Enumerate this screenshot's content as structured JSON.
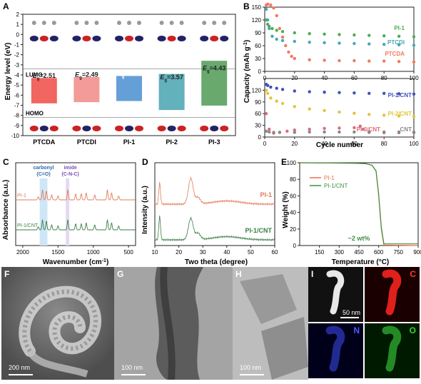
{
  "panels": {
    "A": "A",
    "B": "B",
    "C": "C",
    "D": "D",
    "E": "E",
    "F": "F",
    "G": "G",
    "H": "H",
    "I": "I"
  },
  "colors": {
    "pi1": "#4caf50",
    "ptcdi": "#4aa6b4",
    "ptcda": "#ef7a5e",
    "pi1cnt": "#4150c0",
    "pi2cnt": "#e2c43c",
    "pi3cnt": "#e06a78",
    "cnt": "#888888",
    "c_pi1": "#e57a5a",
    "c_pi1cnt": "#3a7d44",
    "carbonyl_band": "#cfe6f6",
    "imide_band": "#e5d8f3",
    "e_pi1": "#f26b4b",
    "e_pi1cnt": "#3f8f3f"
  },
  "chart_data": [
    {
      "panel": "A",
      "type": "bar",
      "ylabel": "Energy level (eV)",
      "ylim": [
        -10,
        2
      ],
      "yticks": [
        2,
        1,
        0,
        -1,
        -2,
        -3,
        -4,
        -5,
        -6,
        -7,
        -8,
        -9,
        -10
      ],
      "categories": [
        "PTCDA",
        "PTCDI",
        "PI-1",
        "PI-2",
        "PI-3"
      ],
      "lumo": [
        -4.3,
        -4.2,
        -4.1,
        -3.9,
        -2.6
      ],
      "homo": [
        -6.81,
        -6.69,
        -6.58,
        -7.47,
        -7.03
      ],
      "gap_labels": [
        "2.51",
        "2.49",
        "2.48",
        "3.57",
        "4.43"
      ],
      "gap_prefix": "E",
      "gap_sub": "g",
      "lumo_label": "LUMO",
      "homo_label": "HOMO",
      "bar_colors": [
        "#ef4b44",
        "#f08a86",
        "#4a8ed1",
        "#46a3b1",
        "#4f9a55"
      ]
    },
    {
      "panel": "B-top",
      "type": "scatter",
      "ylabel": "Capacity (mAh g",
      "ylabel_sup": "-1",
      "ylabel_end": ")",
      "xlim": [
        0,
        100
      ],
      "ylim": [
        0,
        150
      ],
      "yticks": [
        0,
        30,
        60,
        90,
        120,
        150
      ],
      "xticks": [
        0,
        20,
        40,
        60,
        80,
        100
      ],
      "series": [
        {
          "name": "PI-1",
          "x": [
            1,
            2,
            3,
            5,
            8,
            12,
            20,
            30,
            40,
            50,
            60,
            70,
            80,
            90,
            100
          ],
          "y": [
            120,
            110,
            105,
            100,
            96,
            93,
            90,
            88,
            87,
            86,
            85,
            84,
            83,
            82,
            81
          ]
        },
        {
          "name": "PTCDI",
          "x": [
            1,
            2,
            3,
            5,
            8,
            12,
            20,
            30,
            40,
            50,
            60,
            70,
            80,
            90,
            100
          ],
          "y": [
            145,
            120,
            100,
            82,
            75,
            72,
            70,
            68,
            67,
            66,
            65,
            64,
            63,
            62,
            61
          ]
        },
        {
          "name": "PTCDA",
          "x": [
            1,
            2,
            4,
            6,
            8,
            10,
            12,
            14,
            16,
            18,
            20,
            30,
            40,
            50,
            60,
            70,
            80,
            90,
            100
          ],
          "y": [
            155,
            157,
            155,
            148,
            130,
            100,
            80,
            60,
            45,
            35,
            30,
            27,
            26,
            25,
            25,
            24,
            24,
            23,
            22
          ]
        }
      ]
    },
    {
      "panel": "B-bottom",
      "type": "scatter",
      "xlabel": "Cycle number",
      "xlim": [
        0,
        100
      ],
      "ylim": [
        0,
        150
      ],
      "yticks": [
        0,
        30,
        60,
        90,
        120
      ],
      "xticks": [
        0,
        20,
        40,
        60,
        80,
        100
      ],
      "series": [
        {
          "name": "PI-1/CNT",
          "x": [
            1,
            2,
            4,
            8,
            12,
            20,
            30,
            40,
            50,
            60,
            70,
            80,
            90,
            100
          ],
          "y": [
            135,
            132,
            128,
            125,
            122,
            118,
            116,
            115,
            114,
            113,
            112,
            112,
            111,
            110
          ]
        },
        {
          "name": "PI-2/CNT",
          "x": [
            1,
            2,
            4,
            8,
            12,
            20,
            30,
            40,
            50,
            60,
            70,
            80,
            90,
            100
          ],
          "y": [
            120,
            112,
            100,
            92,
            86,
            78,
            72,
            68,
            64,
            61,
            58,
            56,
            54,
            53
          ]
        },
        {
          "name": "PI-3/CNT",
          "x": [
            1,
            3,
            6,
            10,
            15,
            20,
            30,
            40,
            50,
            60,
            64,
            66,
            70,
            80,
            90,
            100
          ],
          "y": [
            60,
            20,
            10,
            12,
            15,
            18,
            20,
            22,
            23,
            24,
            28,
            20,
            12,
            11,
            11,
            11
          ]
        },
        {
          "name": "CNT",
          "x": [
            1,
            3,
            6,
            10,
            20,
            30,
            40,
            50,
            60,
            70,
            80,
            90,
            100
          ],
          "y": [
            15,
            13,
            12,
            12,
            12,
            13,
            13,
            13,
            13,
            13,
            13,
            13,
            13
          ]
        }
      ]
    },
    {
      "panel": "C",
      "type": "line",
      "xlabel": "Wavenumber (cm",
      "xlabel_sup": "-1",
      "xlabel_end": ")",
      "ylabel": "Absorbance (a.u.)",
      "xlim": [
        2100,
        400
      ],
      "xticks": [
        2000,
        1500,
        1000,
        500
      ],
      "series": [
        {
          "name": "PI-1",
          "peaks": [
            [
              1780,
              0.3
            ],
            [
              1720,
              1.0
            ],
            [
              1665,
              0.9
            ],
            [
              1590,
              0.5
            ],
            [
              1500,
              0.4
            ],
            [
              1360,
              1.0
            ],
            [
              1250,
              0.6
            ],
            [
              1170,
              0.6
            ],
            [
              1100,
              0.7
            ],
            [
              980,
              0.5
            ],
            [
              800,
              1.0
            ],
            [
              740,
              0.7
            ],
            [
              640,
              0.4
            ]
          ]
        },
        {
          "name": "PI-1/CNT",
          "peaks": [
            [
              1780,
              0.3
            ],
            [
              1720,
              1.0
            ],
            [
              1665,
              0.9
            ],
            [
              1590,
              0.5
            ],
            [
              1500,
              0.4
            ],
            [
              1360,
              1.0
            ],
            [
              1250,
              0.6
            ],
            [
              1170,
              0.6
            ],
            [
              1100,
              0.7
            ],
            [
              980,
              0.5
            ],
            [
              800,
              1.0
            ],
            [
              740,
              0.7
            ],
            [
              640,
              0.4
            ]
          ]
        }
      ],
      "annotations": [
        {
          "label": "carbonyl",
          "sub": "(C=O)",
          "range": [
            1760,
            1650
          ]
        },
        {
          "label": "imide",
          "sub": "(C-N-C)",
          "range": [
            1390,
            1340
          ]
        }
      ]
    },
    {
      "panel": "D",
      "type": "line",
      "xlabel": "Two theta (degree)",
      "ylabel": "Intensity (a.u.)",
      "xlim": [
        10,
        60
      ],
      "xticks": [
        10,
        20,
        30,
        40,
        50,
        60
      ],
      "series": [
        {
          "name": "PI-1",
          "peaks": [
            [
              12,
              1.0
            ],
            [
              25,
              1.2
            ],
            [
              28,
              0.3
            ]
          ]
        },
        {
          "name": "PI-1/CNT",
          "peaks": [
            [
              12,
              1.1
            ],
            [
              25,
              1.0
            ],
            [
              28,
              0.3
            ]
          ]
        }
      ]
    },
    {
      "panel": "E",
      "type": "line",
      "xlabel": "Temperature (°C)",
      "ylabel": "Weight (%)",
      "xlim": [
        0,
        900
      ],
      "ylim": [
        0,
        100
      ],
      "xticks": [
        150,
        300,
        450,
        600,
        750,
        900
      ],
      "yticks": [
        0,
        20,
        40,
        60,
        80,
        100
      ],
      "series": [
        {
          "name": "PI-1",
          "x": [
            0,
            400,
            500,
            550,
            580,
            600,
            620,
            640,
            900
          ],
          "y": [
            100,
            99.5,
            99,
            97,
            90,
            60,
            20,
            0.5,
            0
          ]
        },
        {
          "name": "PI-1/CNT",
          "x": [
            0,
            400,
            500,
            550,
            580,
            600,
            620,
            640,
            900
          ],
          "y": [
            100,
            99.5,
            99,
            97,
            90,
            62,
            22,
            2,
            2
          ]
        }
      ],
      "annotation": "~2 wt%"
    }
  ],
  "micrographs": {
    "F": {
      "letter": "F",
      "scale": "200 nm"
    },
    "G": {
      "letter": "G",
      "scale": "100 nm"
    },
    "H": {
      "letter": "H",
      "scale": "100 nm"
    },
    "I": {
      "letter": "I",
      "scale": "50 nm",
      "elements": [
        "C",
        "N",
        "O"
      ]
    }
  }
}
